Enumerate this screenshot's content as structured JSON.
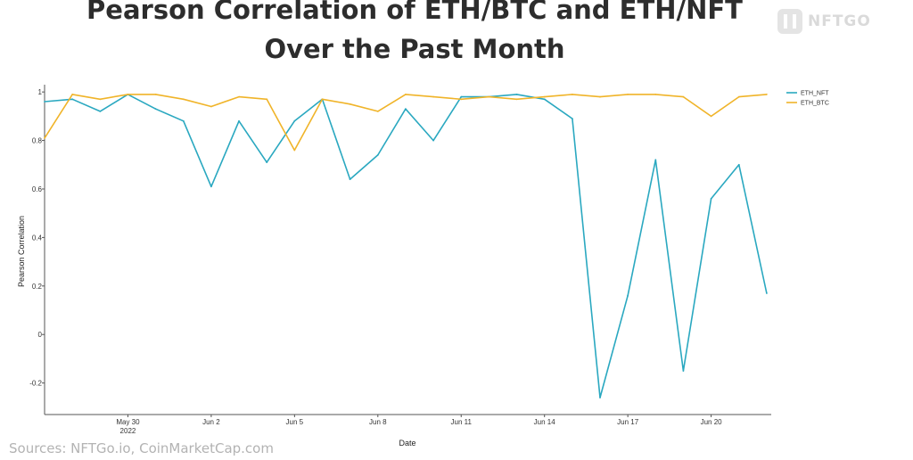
{
  "header": {
    "title_line1": "Pearson Correlation of ETH/BTC and ETH/NFT",
    "title_line2": "Over the Past Month"
  },
  "logo": {
    "text": "NFTGO",
    "icon": "nftgo-logo-icon"
  },
  "footer": {
    "source": "Sources: NFTGo.io, CoinMarketCap.com"
  },
  "chart_data": {
    "type": "line",
    "title": "Pearson Correlation of ETH/BTC and ETH/NFT Over the Past Month",
    "xlabel": "Date",
    "ylabel": "Pearson Correlation",
    "x_axis": "date",
    "xlim": [
      "2022-05-27",
      "2022-06-21"
    ],
    "ylim": [
      -0.33,
      1.03
    ],
    "y_ticks": [
      {
        "value": 1,
        "label": "1"
      },
      {
        "value": 0.8,
        "label": "0.8"
      },
      {
        "value": 0.6,
        "label": "0.6"
      },
      {
        "value": 0.4,
        "label": "0.4"
      },
      {
        "value": 0.2,
        "label": "0.2"
      },
      {
        "value": 0,
        "label": "0"
      },
      {
        "value": -0.2,
        "label": "-0.2"
      }
    ],
    "x_ticks": [
      {
        "date": "2022-05-30",
        "label": "May 30",
        "sublabel": "2022"
      },
      {
        "date": "2022-06-02",
        "label": "Jun 2",
        "sublabel": ""
      },
      {
        "date": "2022-06-05",
        "label": "Jun 5",
        "sublabel": ""
      },
      {
        "date": "2022-06-08",
        "label": "Jun 8",
        "sublabel": ""
      },
      {
        "date": "2022-06-11",
        "label": "Jun 11",
        "sublabel": ""
      },
      {
        "date": "2022-06-14",
        "label": "Jun 14",
        "sublabel": ""
      },
      {
        "date": "2022-06-17",
        "label": "Jun 17",
        "sublabel": ""
      },
      {
        "date": "2022-06-20",
        "label": "Jun 20",
        "sublabel": ""
      }
    ],
    "grid": false,
    "legend_position": "top-right",
    "series": [
      {
        "name": "ETH_NFT",
        "color": "#2aa8c0",
        "points": [
          [
            "2022-05-27",
            0.96
          ],
          [
            "2022-05-28",
            0.97
          ],
          [
            "2022-05-29",
            0.92
          ],
          [
            "2022-05-30",
            0.99
          ],
          [
            "2022-05-31",
            0.93
          ],
          [
            "2022-06-01",
            0.88
          ],
          [
            "2022-06-02",
            0.61
          ],
          [
            "2022-06-03",
            0.88
          ],
          [
            "2022-06-04",
            0.71
          ],
          [
            "2022-06-05",
            0.88
          ],
          [
            "2022-06-06",
            0.97
          ],
          [
            "2022-06-07",
            0.64
          ],
          [
            "2022-06-08",
            0.74
          ],
          [
            "2022-06-09",
            0.93
          ],
          [
            "2022-06-10",
            0.8
          ],
          [
            "2022-06-11",
            0.98
          ],
          [
            "2022-06-12",
            0.98
          ],
          [
            "2022-06-13",
            0.99
          ],
          [
            "2022-06-14",
            0.97
          ],
          [
            "2022-06-15",
            0.89
          ],
          [
            "2022-06-16",
            -0.26
          ],
          [
            "2022-06-17",
            0.16
          ],
          [
            "2022-06-18",
            0.72
          ],
          [
            "2022-06-19",
            -0.15
          ],
          [
            "2022-06-20",
            0.56
          ],
          [
            "2022-06-21",
            0.7
          ],
          [
            "2022-06-22",
            0.17
          ]
        ]
      },
      {
        "name": "ETH_BTC",
        "color": "#f0b429",
        "points": [
          [
            "2022-05-27",
            0.81
          ],
          [
            "2022-05-28",
            0.99
          ],
          [
            "2022-05-29",
            0.97
          ],
          [
            "2022-05-30",
            0.99
          ],
          [
            "2022-05-31",
            0.99
          ],
          [
            "2022-06-01",
            0.97
          ],
          [
            "2022-06-02",
            0.94
          ],
          [
            "2022-06-03",
            0.98
          ],
          [
            "2022-06-04",
            0.97
          ],
          [
            "2022-06-05",
            0.76
          ],
          [
            "2022-06-06",
            0.97
          ],
          [
            "2022-06-07",
            0.95
          ],
          [
            "2022-06-08",
            0.92
          ],
          [
            "2022-06-09",
            0.99
          ],
          [
            "2022-06-10",
            0.98
          ],
          [
            "2022-06-11",
            0.97
          ],
          [
            "2022-06-12",
            0.98
          ],
          [
            "2022-06-13",
            0.97
          ],
          [
            "2022-06-14",
            0.98
          ],
          [
            "2022-06-15",
            0.99
          ],
          [
            "2022-06-16",
            0.98
          ],
          [
            "2022-06-17",
            0.99
          ],
          [
            "2022-06-18",
            0.99
          ],
          [
            "2022-06-19",
            0.98
          ],
          [
            "2022-06-20",
            0.9
          ],
          [
            "2022-06-21",
            0.98
          ],
          [
            "2022-06-22",
            0.99
          ]
        ]
      }
    ]
  }
}
